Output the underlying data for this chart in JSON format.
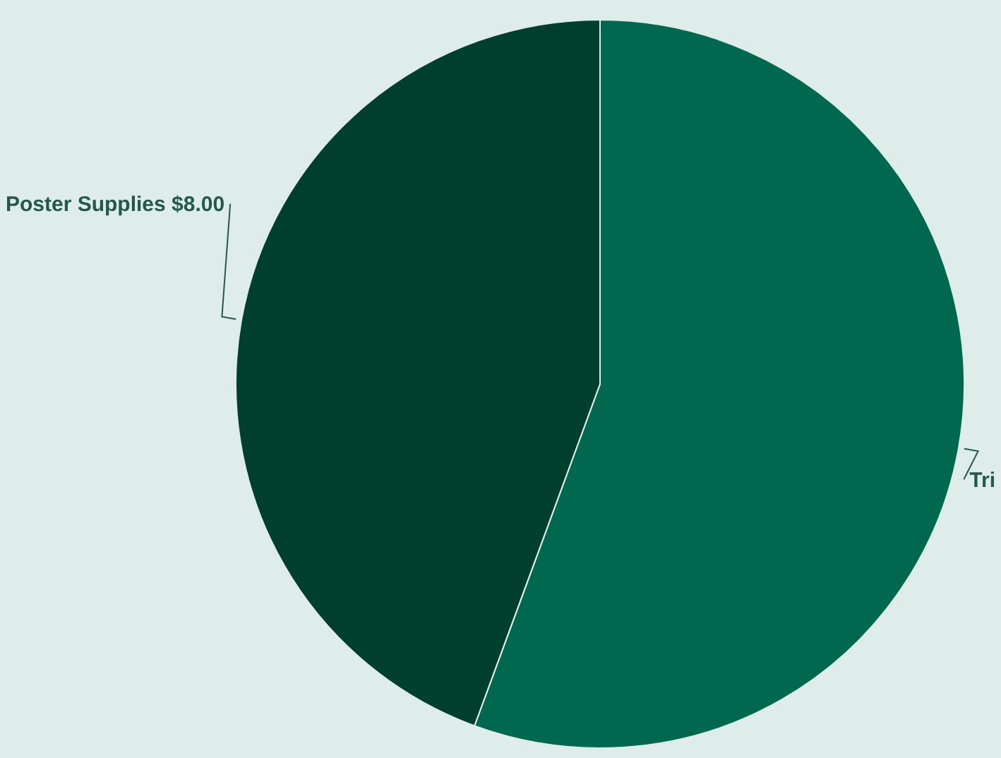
{
  "chart_data": {
    "type": "pie",
    "categories": [
      "Tri",
      "Poster Supplies $8.00"
    ],
    "values": [
      55.6,
      44.4
    ],
    "colors": [
      "#00684f",
      "#003f2e"
    ]
  }
}
